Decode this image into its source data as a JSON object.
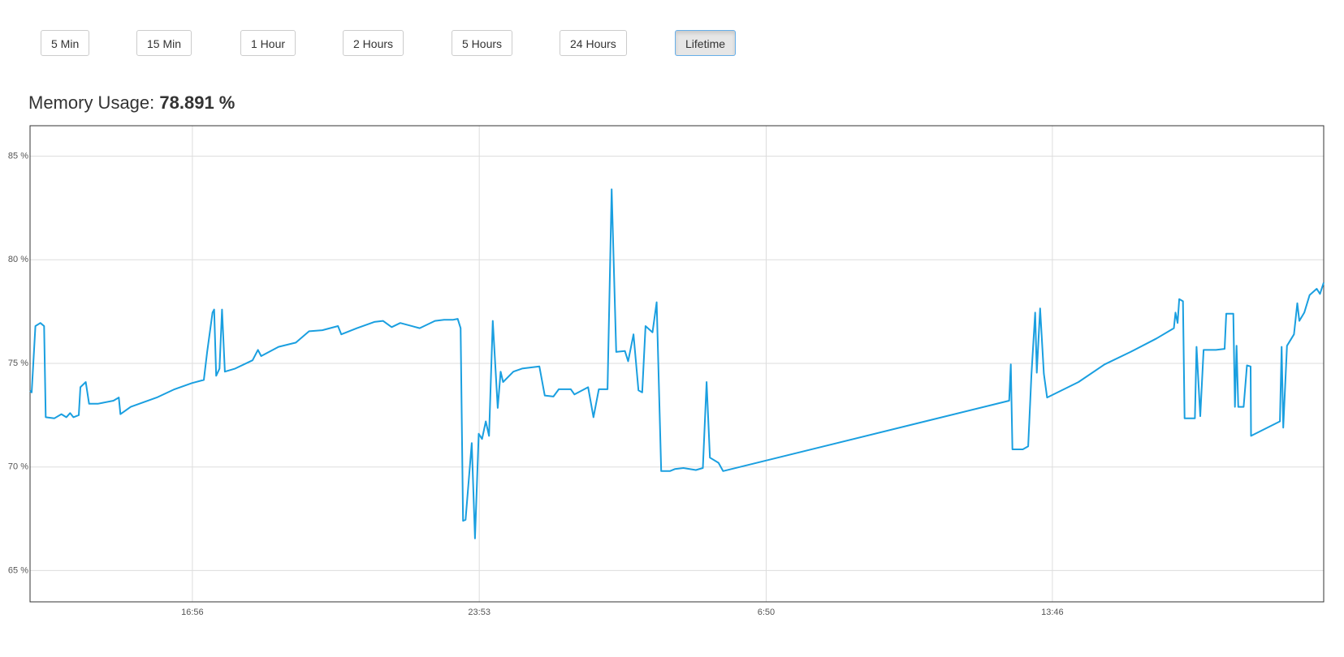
{
  "buttons": [
    "5 Min",
    "15 Min",
    "1 Hour",
    "2 Hours",
    "5 Hours",
    "24 Hours",
    "Lifetime"
  ],
  "active_button": "Lifetime",
  "heading": {
    "label": "Memory Usage:",
    "value": "78.891 %"
  },
  "chart_data": {
    "type": "line",
    "xlim": [
      13.0,
      44.34
    ],
    "ylim": [
      63.49,
      86.47
    ],
    "xticks": [
      {
        "value": 16.933,
        "label": "16:56"
      },
      {
        "value": 23.883,
        "label": "23:53"
      },
      {
        "value": 30.833,
        "label": "6:50"
      },
      {
        "value": 37.767,
        "label": "13:46"
      }
    ],
    "yticks": [
      {
        "value": 65,
        "label": "65 %"
      },
      {
        "value": 70,
        "label": "70 %"
      },
      {
        "value": 75,
        "label": "75 %"
      },
      {
        "value": 80,
        "label": "80 %"
      },
      {
        "value": 85,
        "label": "85 %"
      }
    ],
    "grid": true,
    "series": [
      {
        "color": "#1a9fe0",
        "x": [
          13.0,
          13.04,
          13.13,
          13.25,
          13.34,
          13.38,
          13.59,
          13.76,
          13.88,
          13.97,
          14.05,
          14.18,
          14.22,
          14.35,
          14.43,
          14.64,
          15.02,
          15.15,
          15.19,
          15.44,
          16.07,
          16.5,
          16.92,
          17.21,
          17.29,
          17.42,
          17.46,
          17.51,
          17.59,
          17.65,
          17.72,
          17.97,
          18.39,
          18.52,
          18.6,
          19.02,
          19.44,
          19.76,
          20.08,
          20.46,
          20.54,
          20.92,
          21.34,
          21.55,
          21.76,
          21.97,
          22.44,
          22.81,
          23.03,
          23.24,
          23.36,
          23.43,
          23.49,
          23.55,
          23.7,
          23.78,
          23.87,
          23.95,
          24.04,
          24.12,
          24.21,
          24.33,
          24.4,
          24.46,
          24.71,
          24.92,
          25.34,
          25.47,
          25.68,
          25.81,
          26.1,
          26.19,
          26.52,
          26.65,
          26.78,
          26.99,
          27.09,
          27.2,
          27.41,
          27.49,
          27.62,
          27.74,
          27.83,
          27.91,
          28.08,
          28.18,
          28.29,
          28.5,
          28.62,
          28.83,
          29.13,
          29.3,
          29.39,
          29.47,
          29.68,
          29.79,
          36.72,
          36.76,
          36.8,
          37.05,
          37.18,
          37.26,
          37.35,
          37.39,
          37.47,
          37.56,
          37.64,
          38.4,
          39.03,
          39.66,
          40.29,
          40.71,
          40.75,
          40.8,
          40.84,
          40.93,
          40.97,
          41.22,
          41.26,
          41.35,
          41.43,
          41.73,
          41.94,
          41.98,
          42.15,
          42.19,
          42.23,
          42.27,
          42.4,
          42.48,
          42.57,
          42.58,
          43.28,
          43.32,
          43.36,
          43.45,
          43.62,
          43.7,
          43.75,
          43.87,
          44.0,
          44.17,
          44.25,
          44.34
        ],
        "values": [
          73.68,
          73.6,
          76.8,
          76.95,
          76.8,
          72.4,
          72.35,
          72.55,
          72.4,
          72.6,
          72.4,
          72.5,
          73.85,
          74.1,
          73.05,
          73.05,
          73.2,
          73.35,
          72.55,
          72.9,
          73.35,
          73.75,
          74.05,
          74.2,
          75.55,
          77.45,
          77.6,
          74.4,
          74.75,
          77.6,
          74.6,
          74.75,
          75.15,
          75.65,
          75.35,
          75.8,
          76.0,
          76.55,
          76.6,
          76.8,
          76.4,
          76.7,
          77.0,
          77.05,
          76.75,
          76.95,
          76.7,
          77.05,
          77.1,
          77.1,
          77.15,
          76.7,
          67.4,
          67.45,
          71.15,
          66.55,
          71.6,
          71.35,
          72.2,
          71.5,
          77.05,
          72.85,
          74.6,
          74.1,
          74.6,
          74.75,
          74.85,
          73.45,
          73.4,
          73.75,
          73.75,
          73.5,
          73.85,
          72.4,
          73.75,
          73.75,
          83.4,
          75.55,
          75.6,
          75.1,
          76.4,
          73.7,
          73.6,
          76.8,
          76.5,
          77.95,
          69.8,
          69.8,
          69.9,
          69.95,
          69.85,
          69.95,
          74.1,
          70.45,
          70.2,
          69.8,
          73.2,
          74.95,
          70.85,
          70.85,
          71.0,
          74.45,
          77.45,
          74.55,
          77.65,
          74.5,
          73.35,
          74.1,
          74.95,
          75.55,
          76.2,
          76.7,
          77.45,
          76.95,
          78.1,
          78.0,
          72.35,
          72.35,
          75.8,
          72.45,
          75.65,
          75.65,
          75.7,
          77.4,
          77.4,
          72.9,
          75.85,
          72.9,
          72.9,
          74.9,
          74.85,
          71.5,
          72.2,
          75.8,
          71.9,
          75.85,
          76.4,
          77.9,
          77.05,
          77.45,
          78.3,
          78.6,
          78.35,
          78.9
        ]
      }
    ]
  }
}
